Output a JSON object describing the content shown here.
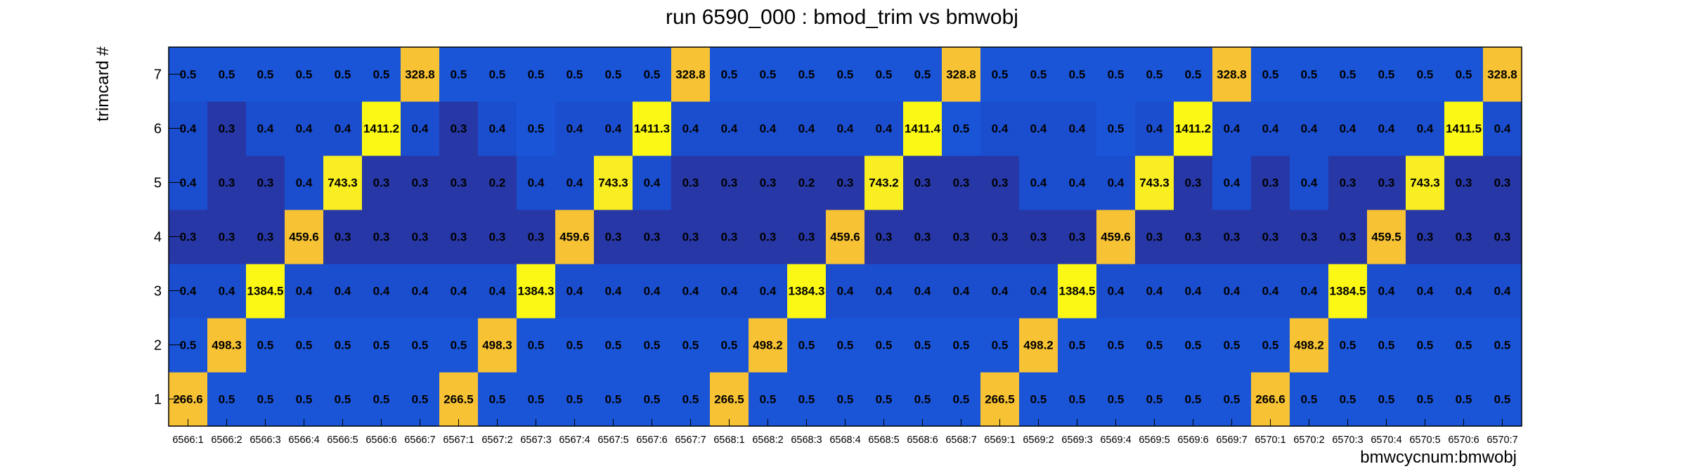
{
  "chart_data": {
    "type": "heatmap",
    "title": "run 6590_000 : bmod_trim vs bmwobj",
    "xlabel": "bmwcycnum:bmwobj",
    "ylabel": "trimcard #",
    "x_categories": [
      "6566:1",
      "6566:2",
      "6566:3",
      "6566:4",
      "6566:5",
      "6566:6",
      "6566:7",
      "6567:1",
      "6567:2",
      "6567:3",
      "6567:4",
      "6567:5",
      "6567:6",
      "6567:7",
      "6568:1",
      "6568:2",
      "6568:3",
      "6568:4",
      "6568:5",
      "6568:6",
      "6568:7",
      "6569:1",
      "6569:2",
      "6569:3",
      "6569:4",
      "6569:5",
      "6569:6",
      "6569:7",
      "6570:1",
      "6570:2",
      "6570:3",
      "6570:4",
      "6570:5",
      "6570:6",
      "6570:7"
    ],
    "y_categories": [
      "1",
      "2",
      "3",
      "4",
      "5",
      "6",
      "7"
    ],
    "values": [
      [
        "266.6",
        "0.5",
        "0.5",
        "0.5",
        "0.5",
        "0.5",
        "0.5",
        "266.5",
        "0.5",
        "0.5",
        "0.5",
        "0.5",
        "0.5",
        "0.5",
        "266.5",
        "0.5",
        "0.5",
        "0.5",
        "0.5",
        "0.5",
        "0.5",
        "266.5",
        "0.5",
        "0.5",
        "0.5",
        "0.5",
        "0.5",
        "0.5",
        "266.6",
        "0.5",
        "0.5",
        "0.5",
        "0.5",
        "0.5",
        "0.5"
      ],
      [
        "0.5",
        "498.3",
        "0.5",
        "0.5",
        "0.5",
        "0.5",
        "0.5",
        "0.5",
        "498.3",
        "0.5",
        "0.5",
        "0.5",
        "0.5",
        "0.5",
        "0.5",
        "498.2",
        "0.5",
        "0.5",
        "0.5",
        "0.5",
        "0.5",
        "0.5",
        "498.2",
        "0.5",
        "0.5",
        "0.5",
        "0.5",
        "0.5",
        "0.5",
        "498.2",
        "0.5",
        "0.5",
        "0.5",
        "0.5",
        "0.5"
      ],
      [
        "0.4",
        "0.4",
        "1384.5",
        "0.4",
        "0.4",
        "0.4",
        "0.4",
        "0.4",
        "0.4",
        "1384.3",
        "0.4",
        "0.4",
        "0.4",
        "0.4",
        "0.4",
        "0.4",
        "1384.3",
        "0.4",
        "0.4",
        "0.4",
        "0.4",
        "0.4",
        "0.4",
        "1384.5",
        "0.4",
        "0.4",
        "0.4",
        "0.4",
        "0.4",
        "0.4",
        "1384.5",
        "0.4",
        "0.4",
        "0.4",
        "0.4"
      ],
      [
        "0.3",
        "0.3",
        "0.3",
        "459.6",
        "0.3",
        "0.3",
        "0.3",
        "0.3",
        "0.3",
        "0.3",
        "459.6",
        "0.3",
        "0.3",
        "0.3",
        "0.3",
        "0.3",
        "0.3",
        "459.6",
        "0.3",
        "0.3",
        "0.3",
        "0.3",
        "0.3",
        "0.3",
        "459.6",
        "0.3",
        "0.3",
        "0.3",
        "0.3",
        "0.3",
        "0.3",
        "459.5",
        "0.3",
        "0.3",
        "0.3"
      ],
      [
        "0.4",
        "0.3",
        "0.3",
        "0.4",
        "743.3",
        "0.3",
        "0.3",
        "0.3",
        "0.2",
        "0.4",
        "0.4",
        "743.3",
        "0.4",
        "0.3",
        "0.3",
        "0.3",
        "0.2",
        "0.3",
        "743.2",
        "0.3",
        "0.3",
        "0.3",
        "0.4",
        "0.4",
        "0.4",
        "743.3",
        "0.3",
        "0.4",
        "0.3",
        "0.4",
        "0.3",
        "0.3",
        "743.3",
        "0.3",
        "0.3"
      ],
      [
        "0.4",
        "0.3",
        "0.4",
        "0.4",
        "0.4",
        "1411.2",
        "0.4",
        "0.3",
        "0.4",
        "0.5",
        "0.4",
        "0.4",
        "1411.3",
        "0.4",
        "0.4",
        "0.4",
        "0.4",
        "0.4",
        "0.4",
        "1411.4",
        "0.5",
        "0.4",
        "0.4",
        "0.4",
        "0.5",
        "0.4",
        "1411.2",
        "0.4",
        "0.4",
        "0.4",
        "0.4",
        "0.4",
        "0.4",
        "1411.5",
        "0.4"
      ],
      [
        "0.5",
        "0.5",
        "0.5",
        "0.5",
        "0.5",
        "0.5",
        "328.8",
        "0.5",
        "0.5",
        "0.5",
        "0.5",
        "0.5",
        "0.5",
        "328.8",
        "0.5",
        "0.5",
        "0.5",
        "0.5",
        "0.5",
        "0.5",
        "328.8",
        "0.5",
        "0.5",
        "0.5",
        "0.5",
        "0.5",
        "0.5",
        "328.8",
        "0.5",
        "0.5",
        "0.5",
        "0.5",
        "0.5",
        "0.5",
        "328.8"
      ]
    ],
    "colors": {
      "low_dark": "#2737a6",
      "low_mid": "#1b4ecf",
      "low_bright": "#1a55d8",
      "mid_orange": "#f7c234",
      "mid_yellow": "#f9ee21",
      "high_yellow": "#fbf815",
      "axis": "#000000",
      "background": "#ffffff"
    },
    "grid": false,
    "legend": "none"
  }
}
